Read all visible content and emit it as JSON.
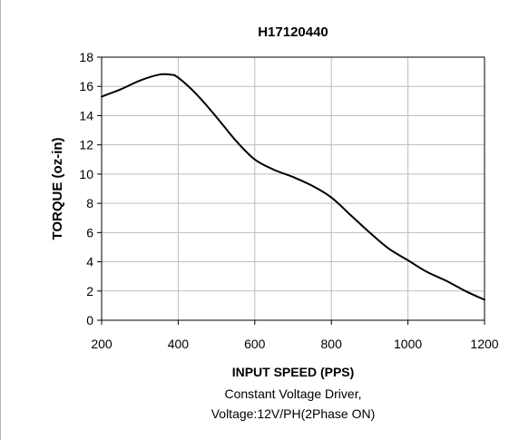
{
  "chart_data": {
    "type": "line",
    "title": "H17120440",
    "xlabel": "INPUT SPEED (PPS)",
    "ylabel": "TORQUE (oz-in)",
    "notes": [
      "Constant Voltage Driver,",
      "Voltage:12V/PH(2Phase ON)"
    ],
    "xlim": [
      200,
      1200
    ],
    "ylim": [
      0,
      18
    ],
    "xticks": [
      200,
      400,
      600,
      800,
      1000,
      1200
    ],
    "yticks": [
      0,
      2,
      4,
      6,
      8,
      10,
      12,
      14,
      16,
      18
    ],
    "grid": true,
    "series": [
      {
        "x": [
          200,
          250,
          300,
          350,
          380,
          400,
          450,
          500,
          550,
          600,
          650,
          700,
          750,
          800,
          850,
          900,
          950,
          1000,
          1050,
          1100,
          1150,
          1200
        ],
        "y": [
          15.3,
          15.8,
          16.4,
          16.8,
          16.8,
          16.6,
          15.4,
          13.9,
          12.3,
          11.0,
          10.3,
          9.8,
          9.2,
          8.4,
          7.2,
          6.0,
          4.9,
          4.1,
          3.3,
          2.7,
          2.0,
          1.4
        ]
      }
    ]
  }
}
